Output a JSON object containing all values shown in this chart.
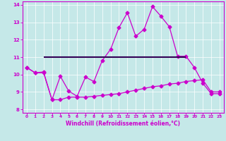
{
  "xlabel": "Windchill (Refroidissement éolien,°C)",
  "xlim": [
    -0.5,
    23.5
  ],
  "ylim": [
    7.8,
    14.2
  ],
  "yticks": [
    8,
    9,
    10,
    11,
    12,
    13,
    14
  ],
  "xticks": [
    0,
    1,
    2,
    3,
    4,
    5,
    6,
    7,
    8,
    9,
    10,
    11,
    12,
    13,
    14,
    15,
    16,
    17,
    18,
    19,
    20,
    21,
    22,
    23
  ],
  "bg_color": "#c5e8e8",
  "line_color": "#cc00cc",
  "flat_line_color": "#330055",
  "line1_x": [
    0,
    1,
    2,
    3,
    4,
    5,
    6,
    7,
    8,
    9,
    10,
    11,
    12,
    13,
    14,
    15,
    16,
    17,
    18,
    19,
    20,
    21,
    22,
    23
  ],
  "line1_y": [
    10.4,
    10.1,
    10.15,
    8.55,
    9.9,
    9.05,
    8.75,
    9.85,
    9.6,
    10.8,
    11.45,
    12.7,
    13.55,
    12.2,
    12.6,
    13.9,
    13.35,
    12.75,
    11.05,
    11.05,
    10.4,
    9.5,
    8.9,
    8.9
  ],
  "line2_x": [
    0,
    1,
    2,
    3,
    4,
    5,
    6,
    7,
    8,
    9,
    10,
    11,
    12,
    13,
    14,
    15,
    16,
    17,
    18,
    19,
    20,
    21,
    22,
    23
  ],
  "line2_y": [
    10.4,
    10.1,
    10.1,
    8.55,
    8.55,
    8.7,
    8.7,
    8.7,
    8.75,
    8.8,
    8.85,
    8.9,
    9.0,
    9.1,
    9.2,
    9.3,
    9.35,
    9.45,
    9.5,
    9.6,
    9.65,
    9.7,
    9.0,
    9.0
  ],
  "flat_line_y": 11.0,
  "flat_line_x1": 2,
  "flat_line_x2": 19,
  "markersize": 2.5,
  "linewidth": 0.9,
  "flat_linewidth": 1.5
}
